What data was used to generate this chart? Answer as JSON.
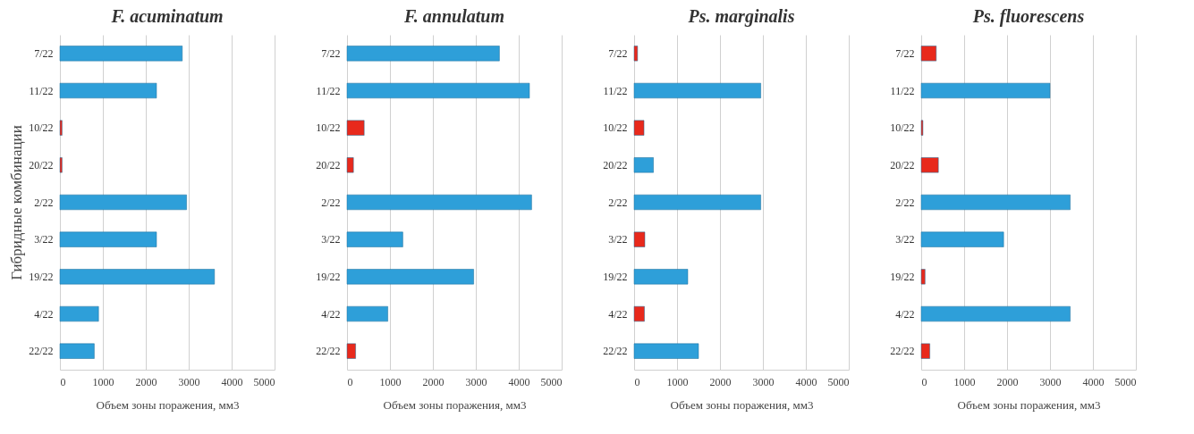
{
  "chart_data": [
    {
      "type": "bar",
      "orientation": "horizontal",
      "title": "F. acuminatum",
      "xlabel": "Объем зоны поражения, мм3",
      "ylabel": "Гибридные комбинации",
      "categories": [
        "7/22",
        "11/22",
        "10/22",
        "20/22",
        "2/22",
        "3/22",
        "19/22",
        "4/22",
        "22/22"
      ],
      "values": [
        2850,
        2250,
        50,
        50,
        2950,
        2250,
        3600,
        900,
        800
      ],
      "colors": [
        "#2e9fd9",
        "#2e9fd9",
        "#e8291c",
        "#e8291c",
        "#2e9fd9",
        "#2e9fd9",
        "#2e9fd9",
        "#2e9fd9",
        "#2e9fd9"
      ],
      "xlim": [
        0,
        5000
      ],
      "xticks": [
        0,
        1000,
        2000,
        3000,
        4000,
        5000
      ],
      "grid": "x"
    },
    {
      "type": "bar",
      "orientation": "horizontal",
      "title": "F. annulatum",
      "xlabel": "Объем зоны поражения, мм3",
      "categories": [
        "7/22",
        "11/22",
        "10/22",
        "20/22",
        "2/22",
        "3/22",
        "19/22",
        "4/22",
        "22/22"
      ],
      "values": [
        3550,
        4250,
        400,
        150,
        4300,
        1300,
        2950,
        950,
        200
      ],
      "colors": [
        "#2e9fd9",
        "#2e9fd9",
        "#e8291c",
        "#e8291c",
        "#2e9fd9",
        "#2e9fd9",
        "#2e9fd9",
        "#2e9fd9",
        "#e8291c"
      ],
      "xlim": [
        0,
        5000
      ],
      "xticks": [
        0,
        1000,
        2000,
        3000,
        4000,
        5000
      ],
      "grid": "x"
    },
    {
      "type": "bar",
      "orientation": "horizontal",
      "title": "Ps. marginalis",
      "xlabel": "Объем зоны поражения, мм3",
      "categories": [
        "7/22",
        "11/22",
        "10/22",
        "20/22",
        "2/22",
        "3/22",
        "19/22",
        "4/22",
        "22/22"
      ],
      "values": [
        80,
        2950,
        230,
        450,
        2950,
        250,
        1250,
        240,
        1500
      ],
      "colors": [
        "#e8291c",
        "#2e9fd9",
        "#e8291c",
        "#2e9fd9",
        "#2e9fd9",
        "#e8291c",
        "#2e9fd9",
        "#e8291c",
        "#2e9fd9"
      ],
      "xlim": [
        0,
        5000
      ],
      "xticks": [
        0,
        1000,
        2000,
        3000,
        4000,
        5000
      ],
      "grid": "x"
    },
    {
      "type": "bar",
      "orientation": "horizontal",
      "title": "Ps. fluorescens",
      "xlabel": "Объем зоны поражения, мм3",
      "categories": [
        "7/22",
        "11/22",
        "10/22",
        "20/22",
        "2/22",
        "3/22",
        "19/22",
        "4/22",
        "22/22"
      ],
      "values": [
        350,
        3000,
        40,
        400,
        3470,
        1920,
        90,
        3470,
        200
      ],
      "colors": [
        "#e8291c",
        "#2e9fd9",
        "#e8291c",
        "#e8291c",
        "#2e9fd9",
        "#2e9fd9",
        "#e8291c",
        "#2e9fd9",
        "#e8291c"
      ],
      "xlim": [
        0,
        5000
      ],
      "xticks": [
        0,
        1000,
        2000,
        3000,
        4000,
        5000
      ],
      "grid": "x"
    }
  ]
}
